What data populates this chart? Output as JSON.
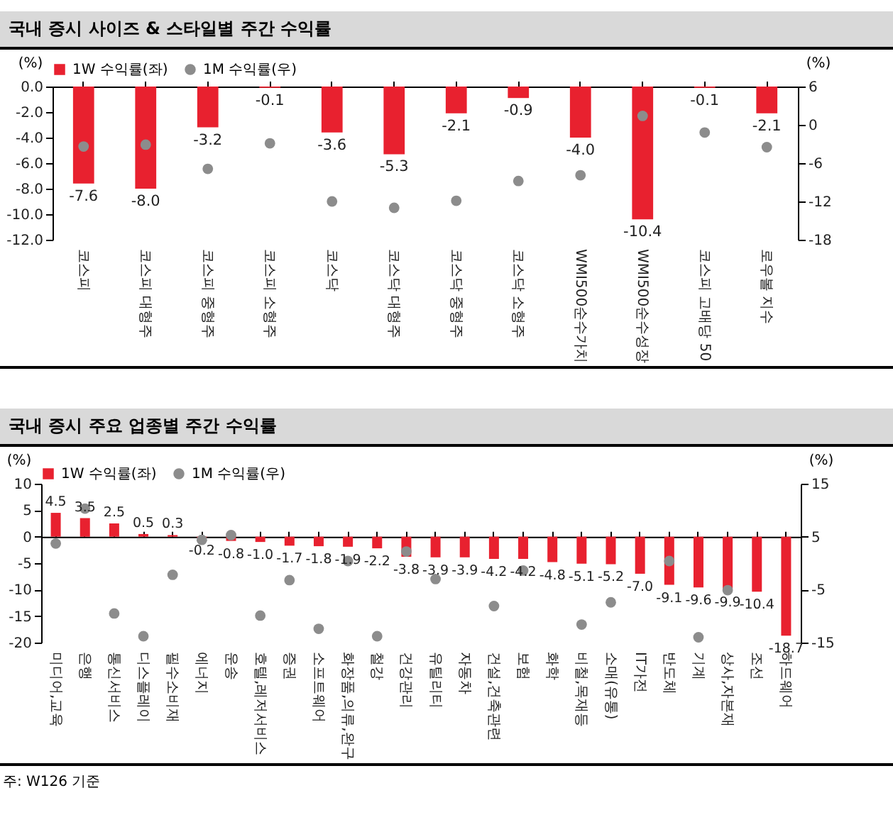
{
  "chart_data": [
    {
      "type": "bar",
      "title": "국내 증시 사이즈 & 스타일별 주간 수익률",
      "ylabel": "(%)",
      "y2label": "(%)",
      "legend": "top",
      "marker": "circle",
      "categories": [
        "코스피",
        "코스피 대형주",
        "코스피 중형주",
        "코스피 소형주",
        "코스닥",
        "코스닥 대형주",
        "코스닥 중형주",
        "코스닥 소형주",
        "WMI500순수가치",
        "WMI500순수성장",
        "코스피 고배당 50",
        "로우볼 지수"
      ],
      "series": [
        {
          "name": "1W 수익률(좌)",
          "color": "#e8212f",
          "values": [
            -7.6,
            -8.0,
            -3.2,
            -0.1,
            -3.6,
            -5.3,
            -2.1,
            -0.9,
            -4.0,
            -10.4,
            -0.1,
            -2.1
          ],
          "value_labels": [
            "-7.6",
            "-8.0",
            "-3.2",
            "-0.1",
            "-3.6",
            "-5.3",
            "-2.1",
            "-0.9",
            "-4.0",
            "-10.4",
            "-0.1",
            "-2.1"
          ]
        },
        {
          "name": "1M 수익률(우)",
          "type": "scatter",
          "axis": "y2",
          "color": "#8c8c8c",
          "values": [
            -3.4,
            -3.1,
            -6.9,
            -2.9,
            -12.0,
            -13.0,
            -11.9,
            -8.8,
            -7.9,
            1.4,
            -1.2,
            -3.5
          ]
        }
      ],
      "ylim": [
        -12,
        0
      ],
      "yticks": [
        {
          "value": 0,
          "label": "0.0"
        },
        {
          "value": -2,
          "label": "-2.0"
        },
        {
          "value": -4,
          "label": "-4.0"
        },
        {
          "value": -6,
          "label": "-6.0"
        },
        {
          "value": -8,
          "label": "-8.0"
        },
        {
          "value": -10,
          "label": "-10.0"
        },
        {
          "value": -12,
          "label": "-12.0"
        }
      ],
      "y2lim": [
        -18,
        6
      ],
      "y2ticks": [
        6,
        0,
        -6,
        -12,
        -18
      ]
    },
    {
      "type": "bar",
      "title": "국내 증시 주요 업종별 주간 수익률",
      "ylabel": "(%)",
      "y2label": "(%)",
      "legend": "top",
      "marker": "circle",
      "annotations": [
        "주: W126 기준"
      ],
      "categories": [
        "미디어,교육",
        "은행",
        "통신서비스",
        "디스플레이",
        "필수소비재",
        "에너지",
        "운송",
        "호텔,레저서비스",
        "증권",
        "소프트웨어",
        "화장품,의류,완구",
        "철강",
        "건강관리",
        "유틸리티",
        "자동차",
        "건설,건축관련",
        "보험",
        "화학",
        "비철,목재등",
        "소매(유통)",
        "IT가전",
        "반도체",
        "기계",
        "상사,자본재",
        "조선",
        "하드웨어"
      ],
      "series": [
        {
          "name": "1W 수익률(좌)",
          "color": "#e8212f",
          "values": [
            4.5,
            3.5,
            2.5,
            0.5,
            0.3,
            -0.2,
            -0.8,
            -1.0,
            -1.7,
            -1.8,
            -1.9,
            -2.2,
            -3.8,
            -3.9,
            -3.9,
            -4.2,
            -4.2,
            -4.8,
            -5.1,
            -5.2,
            -7.0,
            -9.1,
            -9.6,
            -9.9,
            -10.4,
            -18.7
          ],
          "value_labels": [
            "4.5",
            "3.5",
            "2.5",
            "0.5",
            "0.3",
            "-0.2",
            "-0.8",
            "-1.0",
            "-1.7",
            "-1.8",
            "-1.9",
            "-2.2",
            "-3.8",
            "-3.9",
            "-3.9",
            "-4.2",
            "-4.2",
            "-4.8",
            "-5.1",
            "-5.2",
            "-7.0",
            "-9.1",
            "-9.6",
            "-9.9",
            "-10.4",
            "-18.7"
          ]
        },
        {
          "name": "1M 수익률(우)",
          "type": "scatter",
          "axis": "y2",
          "color": "#8c8c8c",
          "values": [
            3.7,
            10.3,
            -9.5,
            -13.8,
            -2.2,
            4.4,
            5.3,
            -9.9,
            -3.2,
            -12.4,
            0.4,
            -13.8,
            2.2,
            -3.0,
            null,
            -8.1,
            -1.4,
            null,
            -11.6,
            -7.4,
            null,
            0.4,
            -14.0,
            -5.1,
            null,
            null
          ]
        }
      ],
      "ylim": [
        -20,
        10
      ],
      "yticks": [
        10,
        5,
        0,
        -5,
        -10,
        -15,
        -20
      ],
      "y2lim": [
        -15,
        15
      ],
      "y2ticks": [
        15,
        5,
        -5,
        -15
      ]
    }
  ]
}
